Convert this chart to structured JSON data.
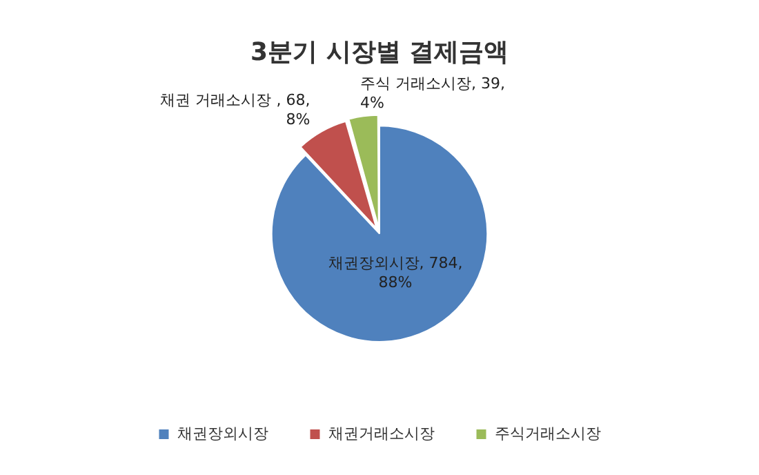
{
  "chart_data": {
    "type": "pie",
    "title": "3분기 시장별 결제금액",
    "categories": [
      "채권장외시장",
      "채권거래소시장",
      "주식거래소시장"
    ],
    "values": [
      784,
      68,
      39
    ],
    "colors": [
      "#4f81bd",
      "#c0504d",
      "#9bbb59"
    ],
    "value_labels": [
      "채권장외시장, 784,\n88%",
      "채권 거래소시장 , 68,\n8%",
      "주식 거래소시장, 39,\n4%"
    ],
    "legend": "bottom"
  }
}
